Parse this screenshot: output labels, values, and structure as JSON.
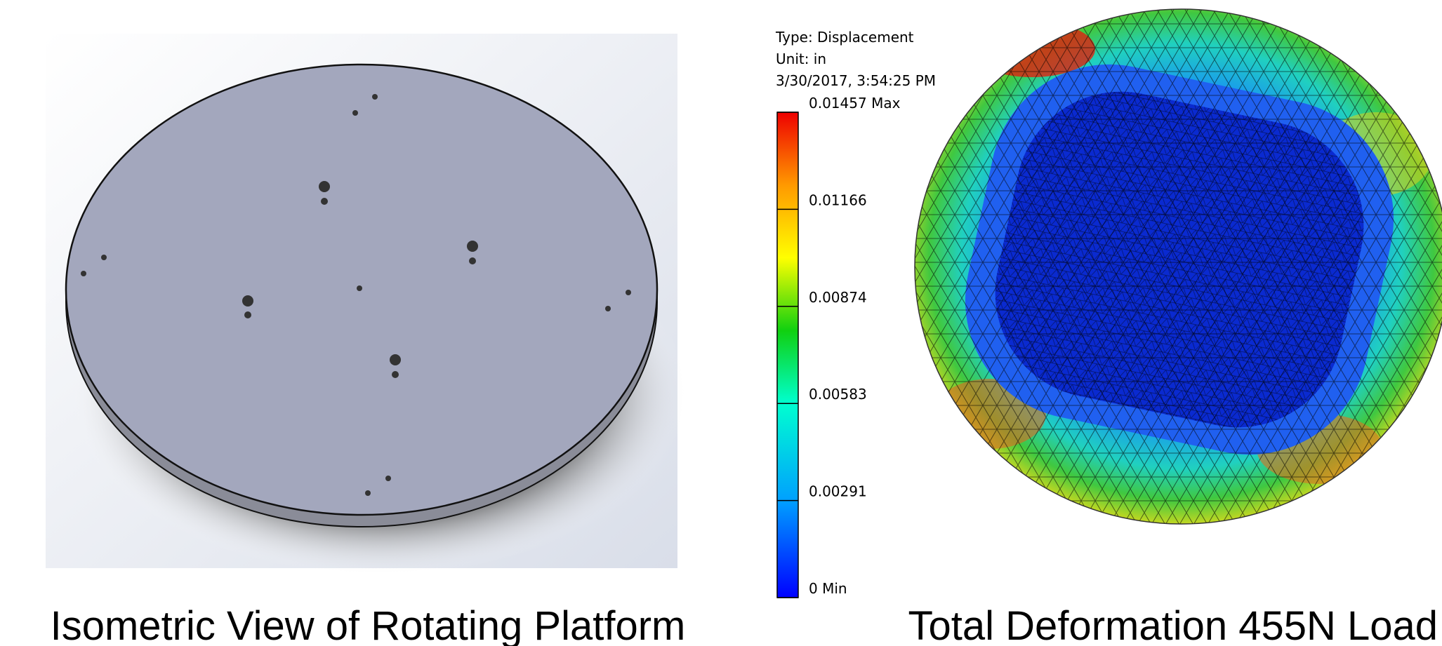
{
  "left_panel": {
    "caption": "Isometric View of Rotating Platform"
  },
  "right_panel": {
    "legend": {
      "header": [
        "Type: Displacement",
        "Unit: in",
        "3/30/2017, 3:54:25 PM"
      ],
      "ticks": [
        "0.01457 Max",
        "0.01166",
        "0.00874",
        "0.00583",
        "0.00291",
        "0 Min"
      ]
    },
    "caption": "Total Deformation 455N Load"
  }
}
